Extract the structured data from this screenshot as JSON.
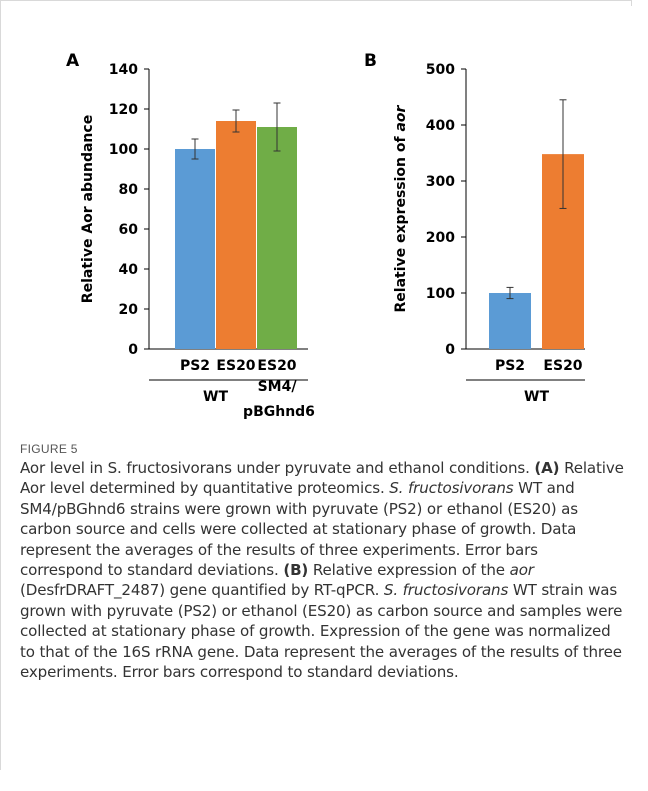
{
  "figure_label": "FIGURE 5",
  "caption": {
    "title": "Aor level in S. fructosivorans under pyruvate and ethanol conditions.",
    "a_label": "(A)",
    "a_text_1": " Relative Aor level determined by quantitative proteomics. ",
    "a_species": "S. fructosivorans",
    "a_text_2": " WT and SM4/pBGhnd6 strains were grown with pyruvate (PS2) or ethanol (ES20) as carbon source and cells were collected at stationary phase of growth. Data represent the averages of the results of three experiments. Error bars correspond to standard deviations. ",
    "b_label": "(B)",
    "b_text_1": " Relative expression of the ",
    "b_gene": "aor",
    "b_text_2": " (DesfrDRAFT_2487) gene quantified by RT-qPCR. ",
    "b_species": "S. fructosivorans",
    "b_text_3": " WT strain was grown with pyruvate (PS2) or ethanol (ES20) as carbon source and samples were collected at stationary phase of growth. Expression of the gene was normalized to that of the 16S rRNA gene. Data represent the averages of the results of three experiments. Error bars correspond to standard deviations."
  },
  "chart_data": [
    {
      "type": "bar",
      "panel": "A",
      "title": "",
      "xlabel": "",
      "ylabel": "Relative Aor abundance",
      "ylim": [
        0,
        140
      ],
      "yticks": [
        0,
        20,
        40,
        60,
        80,
        100,
        120,
        140
      ],
      "categories": [
        "PS2",
        "ES20",
        "ES20"
      ],
      "values": [
        100,
        114,
        111
      ],
      "errors": [
        5,
        5.5,
        12
      ],
      "colors": [
        "#5b9bd5",
        "#ed7d31",
        "#70ad47"
      ],
      "groups": [
        {
          "label": "WT",
          "categories": [
            0,
            1
          ]
        },
        {
          "label": "SM4/",
          "label2": "pBGhnd6",
          "categories": [
            2
          ]
        }
      ],
      "grid": false,
      "legend": "none"
    },
    {
      "type": "bar",
      "panel": "B",
      "title": "",
      "xlabel": "",
      "ylabel": "Relative expression of ",
      "ylabel_italic": "aor",
      "ylim": [
        0,
        500
      ],
      "yticks": [
        0,
        100,
        200,
        300,
        400,
        500
      ],
      "categories": [
        "PS2",
        "ES20"
      ],
      "values": [
        100,
        348
      ],
      "errors": [
        10,
        97
      ],
      "colors": [
        "#5b9bd5",
        "#ed7d31"
      ],
      "groups": [
        {
          "label": "WT",
          "categories": [
            0,
            1
          ]
        }
      ],
      "grid": false,
      "legend": "none"
    }
  ]
}
